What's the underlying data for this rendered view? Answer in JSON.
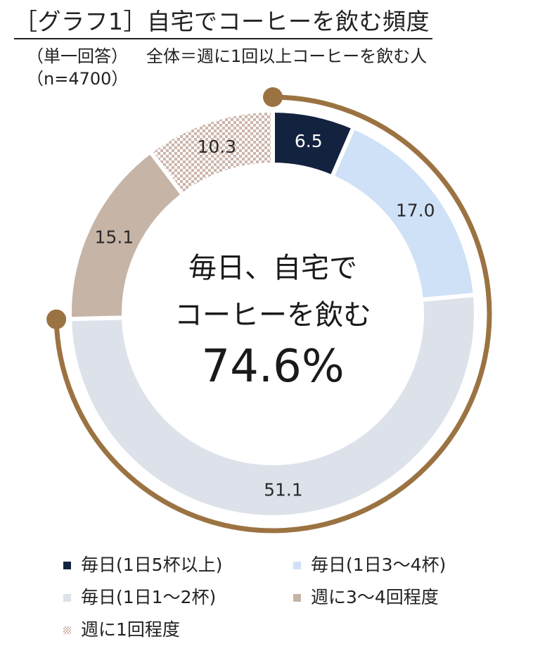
{
  "header": {
    "title": "［グラフ1］自宅でコーヒーを飲む頻度",
    "question_type": "（単一回答）",
    "base_note": "全体＝週に1回以上コーヒーを飲む人",
    "sample_size": "（n=4700）"
  },
  "chart_data": {
    "type": "pie",
    "variant": "donut",
    "unit": "%",
    "categories": [
      "毎日（1日5杯以上）",
      "毎日（1日3〜4杯）",
      "毎日（1日1〜2杯）",
      "週に3〜4回程度",
      "週に1回程度"
    ],
    "values": [
      6.5,
      17.0,
      51.1,
      15.1,
      10.3
    ],
    "value_labels": [
      "6.5",
      "17.0",
      "51.1",
      "15.1",
      "10.3"
    ],
    "colors": [
      "#13233f",
      "#cfe1f6",
      "#dde2ea",
      "#c6b4a6",
      "#d9c6bb"
    ],
    "patterns": [
      "solid",
      "solid",
      "solid",
      "solid",
      "checker"
    ],
    "start_angle_deg": 0,
    "direction": "clockwise",
    "center_label": {
      "line1": "毎日、自宅で",
      "line2": "コーヒーを飲む",
      "value": "74.6%"
    },
    "highlight_arc": {
      "covers": [
        "毎日（1日5杯以上）",
        "毎日（1日3〜4杯）",
        "毎日（1日1〜2杯）"
      ],
      "total": 74.6,
      "color": "#9b7342"
    },
    "legend_position": "bottom"
  },
  "legend": {
    "items": [
      {
        "label": "毎日(1日5杯以上)",
        "color": "#13233f",
        "pattern": "solid"
      },
      {
        "label": "毎日(1日3〜4杯)",
        "color": "#cfe1f6",
        "pattern": "solid"
      },
      {
        "label": "毎日(1日1〜2杯)",
        "color": "#dde2ea",
        "pattern": "solid"
      },
      {
        "label": "週に3〜4回程度",
        "color": "#c6b4a6",
        "pattern": "solid"
      },
      {
        "label": "週に1回程度",
        "color": "#d9c6bb",
        "pattern": "checker"
      }
    ]
  }
}
